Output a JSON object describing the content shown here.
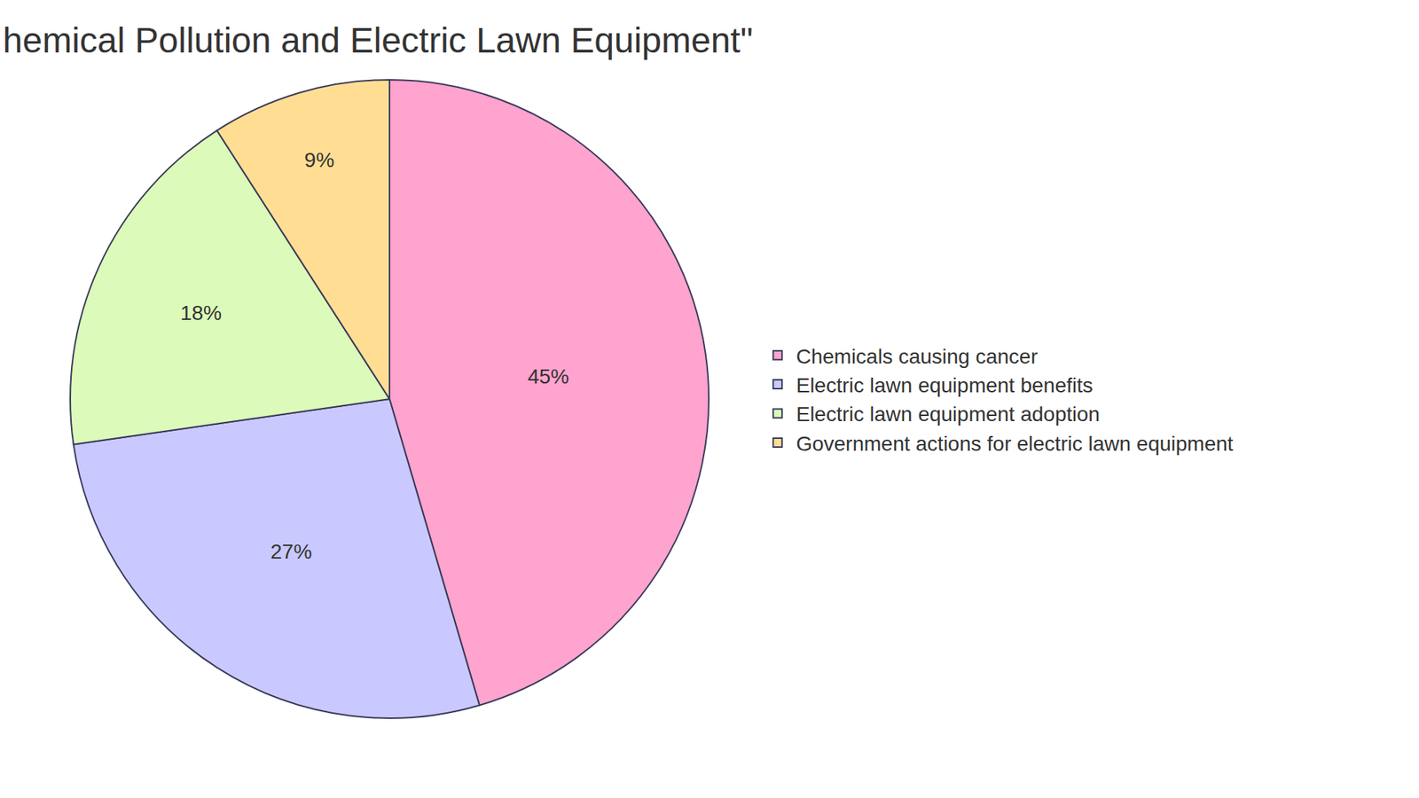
{
  "chart_data": {
    "type": "pie",
    "title": "hemical Pollution and Electric Lawn Equipment\"",
    "categories": [
      "Chemicals causing cancer",
      "Electric lawn equipment benefits",
      "Electric lawn equipment adoption",
      "Government actions for electric lawn equipment"
    ],
    "values": [
      45,
      27,
      18,
      9
    ],
    "value_labels": [
      "45%",
      "27%",
      "18%",
      "9%"
    ],
    "colors": [
      "#ffa3cf",
      "#c9c9ff",
      "#dcfab9",
      "#ffde94"
    ],
    "data_labels": true,
    "legend": "right"
  }
}
